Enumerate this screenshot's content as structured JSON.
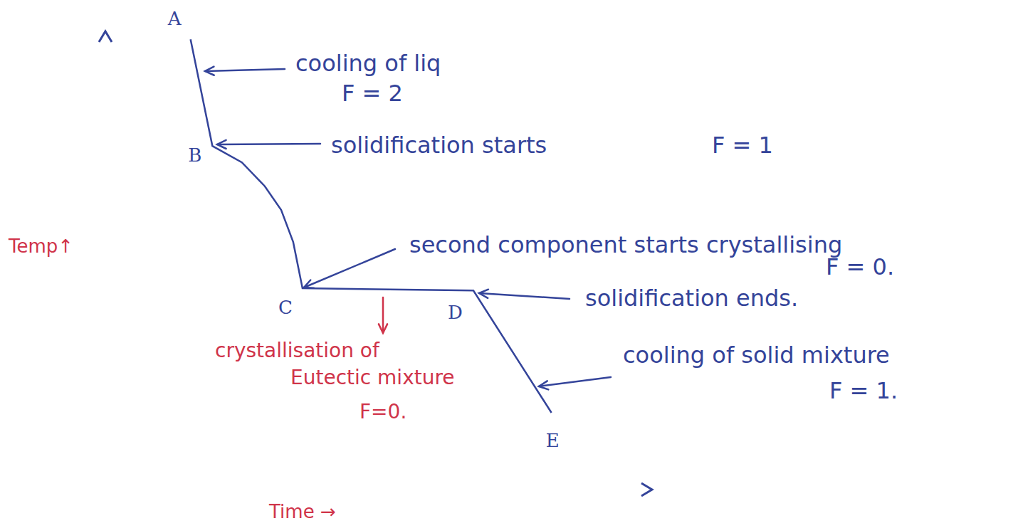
{
  "chart_data": {
    "type": "line",
    "x_label": "Time →",
    "y_label": "Temp↑",
    "xlim": [
      0,
      100
    ],
    "ylim": [
      0,
      100
    ],
    "tick_labels": false,
    "grid": false,
    "color": "#34449a",
    "x": [
      15.6,
      19.6,
      25.0,
      29.2,
      32.2,
      34.4,
      36.1,
      67.4,
      81.7
    ],
    "values": [
      98.4,
      75.1,
      71.5,
      66.3,
      61.1,
      54.1,
      44.0,
      43.5,
      16.8
    ],
    "point_labels": [
      "A",
      "B",
      null,
      null,
      null,
      null,
      "C",
      "D",
      "E"
    ],
    "annotations": [
      {
        "lines": [
          "cooling of liq",
          "F = 2"
        ]
      },
      {
        "lines": [
          "solidification starts",
          "F = 1"
        ]
      },
      {
        "lines": [
          "second component starts crystallising",
          "F = 0."
        ]
      },
      {
        "lines": [
          "solidification ends."
        ]
      },
      {
        "lines": [
          "cooling of solid mixture",
          "F = 1."
        ]
      },
      {
        "lines": [
          "crystallisation of",
          "Eutectic mixture",
          "F=0."
        ]
      }
    ]
  }
}
